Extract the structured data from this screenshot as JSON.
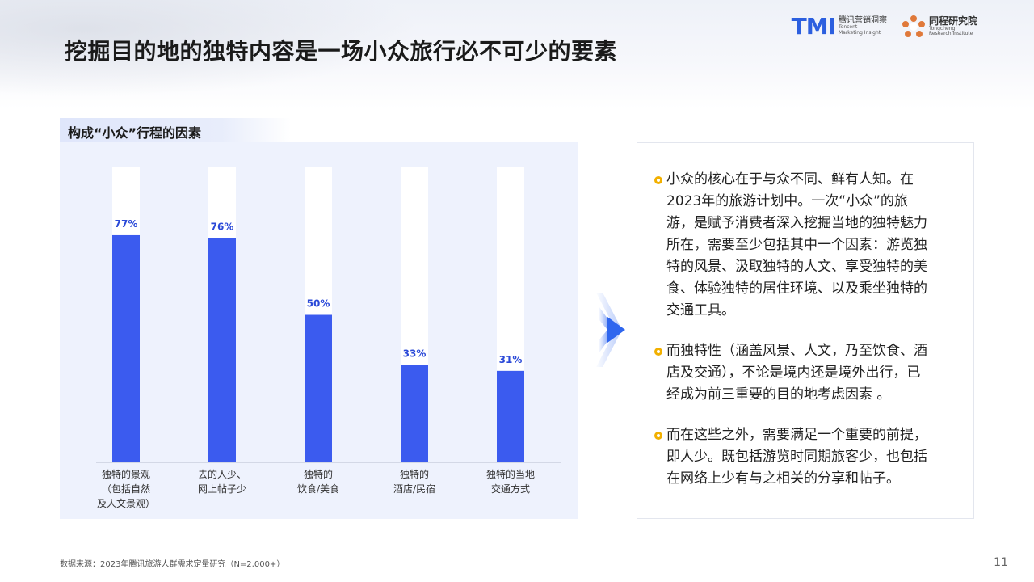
{
  "header": {
    "title": "挖掘目的地的独特内容是一场小众旅行必不可少的要素",
    "logo1_mark": "TMI",
    "logo1_cn": "腾讯营销洞察",
    "logo1_en1": "Tencent",
    "logo1_en2": "Marketing Insight",
    "logo2_cn": "同程研究院",
    "logo2_en1": "Tongcheng",
    "logo2_en2": "Research Institute"
  },
  "section": {
    "label": "构成“小众”行程的因素"
  },
  "chart_data": {
    "type": "bar",
    "categories": [
      [
        "独特的景观",
        "（包括自然",
        "及人文景观）"
      ],
      [
        "去的人少、",
        "网上帖子少"
      ],
      [
        "独特的",
        "饮食/美食"
      ],
      [
        "独特的",
        "酒店/民宿"
      ],
      [
        "独特的当地",
        "交通方式"
      ]
    ],
    "values": [
      77,
      76,
      50,
      33,
      31
    ],
    "value_labels": [
      "77%",
      "76%",
      "50%",
      "33%",
      "31%"
    ],
    "ylim": [
      0,
      100
    ],
    "colors": {
      "bar": "#3b5bef",
      "track": "#ffffff",
      "label": "#2a49d8"
    }
  },
  "bullets": [
    [
      "小众的核心在于与众不同、鲜有人知。在",
      "2023年的旅游计划中。一次“小众”的旅",
      "游，是赋予消费者深入挖掘当地的独特魅力",
      "所在，需要至少包括其中一个因素：游览独",
      "特的风景、汲取独特的人文、享受独特的美",
      "食、体验独特的居住环境、以及乘坐独特的",
      "交通工具。"
    ],
    [
      "而独特性（涵盖风景、人文，乃至饮食、酒",
      "店及交通），不论是境内还是境外出行，已",
      "经成为前三重要的目的地考虑因素 。"
    ],
    [
      "而在这些之外，需要满足一个重要的前提，",
      "即人少。既包括游览时同期旅客少，也包括",
      "在网络上少有与之相关的分享和帖子。"
    ]
  ],
  "footer": {
    "source": "数据来源：2023年腾讯旅游人群需求定量研究（N=2,000+）",
    "page": "11"
  }
}
